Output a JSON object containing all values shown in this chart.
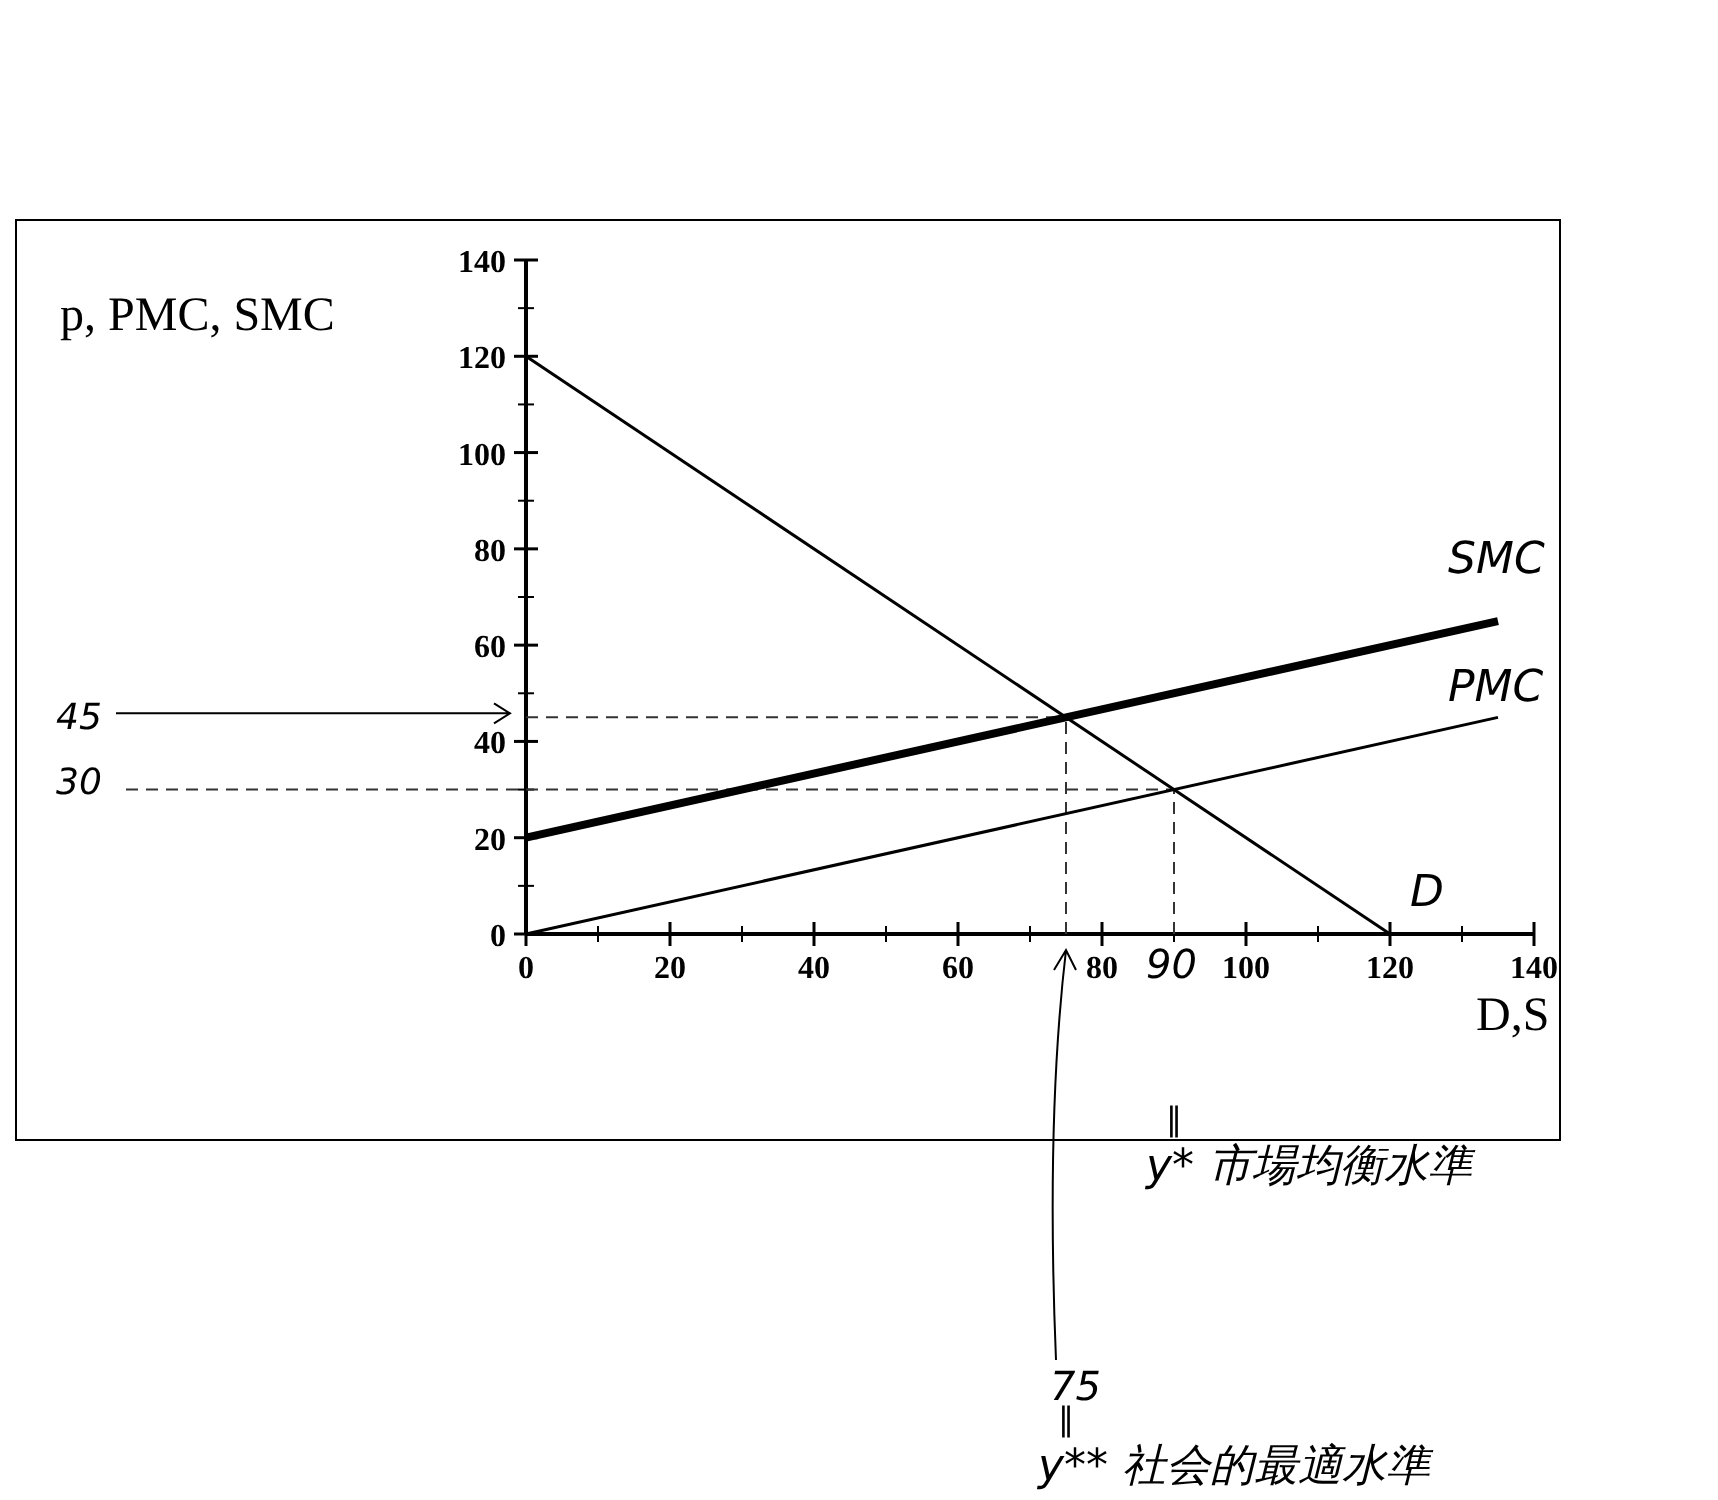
{
  "chart_data": {
    "type": "line",
    "ylabel": "p, PMC, SMC",
    "xlabel": "D,S",
    "xlim": [
      0,
      140
    ],
    "ylim": [
      0,
      140
    ],
    "xticks": [
      0,
      20,
      40,
      60,
      80,
      100,
      120,
      140
    ],
    "yticks": [
      0,
      20,
      40,
      60,
      80,
      100,
      120,
      140
    ],
    "series": [
      {
        "name": "D",
        "color": "#000000",
        "x": [
          0,
          120
        ],
        "values": [
          120,
          0
        ]
      },
      {
        "name": "SMC",
        "color": "#000000",
        "x": [
          0,
          135
        ],
        "values": [
          20,
          65
        ]
      },
      {
        "name": "PMC",
        "color": "#000000",
        "x": [
          0,
          135
        ],
        "values": [
          0,
          45
        ]
      }
    ],
    "ref_lines": [
      {
        "axis": "y",
        "value": 45,
        "label": "45",
        "line_style": "dashed"
      },
      {
        "axis": "y",
        "value": 30,
        "label": "30",
        "line_style": "dashed"
      },
      {
        "axis": "x",
        "value": 75,
        "label": "75",
        "line_style": "dashed"
      },
      {
        "axis": "x",
        "value": 90,
        "label": "90",
        "line_style": "dashed"
      }
    ],
    "annotations": [
      "y* 市場均衡水準",
      "y** 社会的最適水準",
      "‖",
      "‖"
    ],
    "grid": false,
    "line_style": "solid"
  }
}
